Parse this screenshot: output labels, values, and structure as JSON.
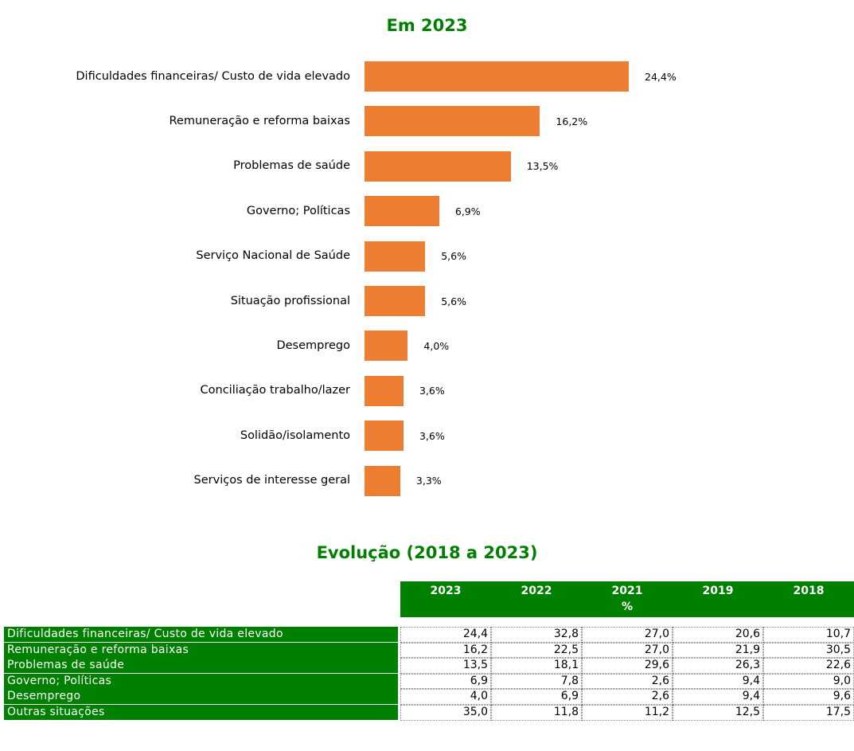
{
  "chart_data": {
    "type": "bar",
    "orientation": "horizontal",
    "title": "Em 2023",
    "categories": [
      "Dificuldades financeiras/ Custo de vida elevado",
      "Remuneração e reforma baixas",
      "Problemas de saúde",
      "Governo; Políticas",
      "Serviço Nacional de Saúde",
      "Situação profissional",
      "Desemprego",
      "Conciliação trabalho/lazer",
      "Solidão/isolamento",
      "Serviços de interesse geral"
    ],
    "values": [
      24.4,
      16.2,
      13.5,
      6.9,
      5.6,
      5.6,
      4.0,
      3.6,
      3.6,
      3.3
    ],
    "value_labels": [
      "24,4%",
      "16,2%",
      "13,5%",
      "6,9%",
      "5,6%",
      "5,6%",
      "4,0%",
      "3,6%",
      "3,6%",
      "3,3%"
    ],
    "color": "#ed7d31"
  },
  "table": {
    "title": "Evolução (2018 a 2023)",
    "header": [
      "2023",
      "2022",
      "2021",
      "2019",
      "2018"
    ],
    "unit": "%",
    "rows": [
      [
        "Dificuldades financeiras/ Custo de vida elevado",
        "24,4",
        "32,8",
        "27,0",
        "20,6",
        "10,7"
      ],
      [
        "Remuneração e reforma baixas",
        "16,2",
        "22,5",
        "27,0",
        "21,9",
        "30,5"
      ],
      [
        "Problemas de saúde",
        "13,5",
        "18,1",
        "29,6",
        "26,3",
        "22,6"
      ],
      [
        "Governo; Políticas",
        "6,9",
        "7,8",
        "2,6",
        "9,4",
        "9,0"
      ],
      [
        "Desemprego",
        "4,0",
        "6,9",
        "2,6",
        "9,4",
        "9,6"
      ],
      [
        "Outras situações",
        "35,0",
        "11,8",
        "11,2",
        "12,5",
        "17,5"
      ]
    ]
  }
}
